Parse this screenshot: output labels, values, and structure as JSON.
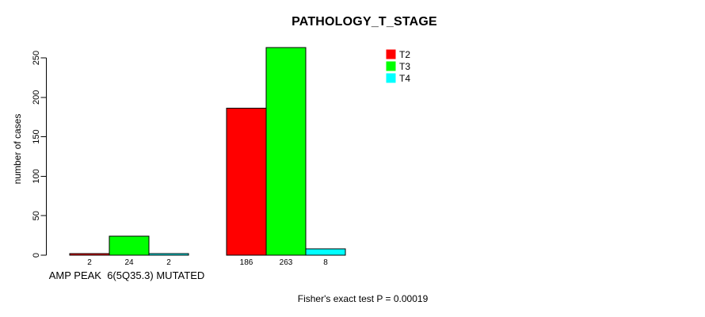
{
  "chart_data": {
    "type": "bar",
    "title": "PATHOLOGY_T_STAGE",
    "ylabel": "number of cases",
    "xlabel": "",
    "ylim": [
      0,
      250
    ],
    "yticks": [
      0,
      50,
      100,
      150,
      200,
      250
    ],
    "grid": false,
    "categories": [
      "AMP PEAK  6(5Q35.3) MUTATED",
      ""
    ],
    "series": [
      {
        "name": "T2",
        "color": "#ff0000",
        "values": [
          2,
          186
        ]
      },
      {
        "name": "T3",
        "color": "#00ff00",
        "values": [
          24,
          263
        ]
      },
      {
        "name": "T4",
        "color": "#00ffff",
        "values": [
          2,
          8
        ]
      }
    ],
    "bar_value_labels": [
      [
        "2",
        "24",
        "2"
      ],
      [
        "186",
        "263",
        "8"
      ]
    ],
    "legend": {
      "position": "top-right",
      "entries": [
        {
          "label": "T2",
          "color": "#ff0000"
        },
        {
          "label": "T3",
          "color": "#00ff00"
        },
        {
          "label": "T4",
          "color": "#00ffff"
        }
      ]
    },
    "footer": "Fisher's exact test P = 0.00019",
    "bar_outline_color": "#000000",
    "axis_color": "#000000",
    "background_color": "#ffffff"
  }
}
